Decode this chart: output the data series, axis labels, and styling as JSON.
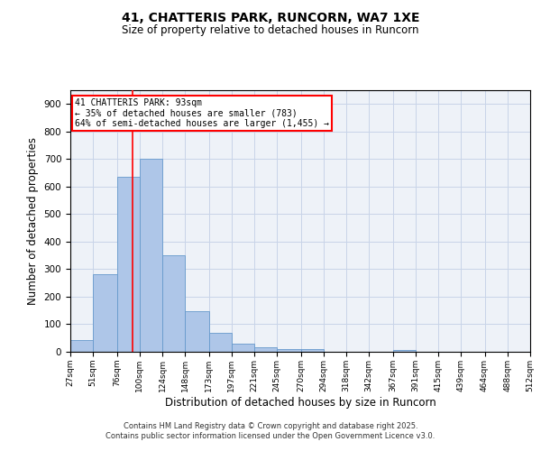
{
  "title": "41, CHATTERIS PARK, RUNCORN, WA7 1XE",
  "subtitle": "Size of property relative to detached houses in Runcorn",
  "xlabel": "Distribution of detached houses by size in Runcorn",
  "ylabel": "Number of detached properties",
  "footer_line1": "Contains HM Land Registry data © Crown copyright and database right 2025.",
  "footer_line2": "Contains public sector information licensed under the Open Government Licence v3.0.",
  "bins": [
    27,
    51,
    76,
    100,
    124,
    148,
    173,
    197,
    221,
    245,
    270,
    294,
    318,
    342,
    367,
    391,
    415,
    439,
    464,
    488,
    512
  ],
  "values": [
    42,
    283,
    635,
    700,
    350,
    147,
    68,
    30,
    16,
    11,
    9,
    0,
    0,
    0,
    7,
    0,
    0,
    0,
    0,
    0
  ],
  "bar_color": "#aec6e8",
  "bar_edge_color": "#6699cc",
  "vline_x": 93,
  "vline_color": "red",
  "ylim": [
    0,
    950
  ],
  "yticks": [
    0,
    100,
    200,
    300,
    400,
    500,
    600,
    700,
    800,
    900
  ],
  "annotation_line1": "41 CHATTERIS PARK: 93sqm",
  "annotation_line2": "← 35% of detached houses are smaller (783)",
  "annotation_line3": "64% of semi-detached houses are larger (1,455) →",
  "grid_color": "#c8d4e8",
  "background_color": "#eef2f8",
  "tick_labels": [
    "27sqm",
    "51sqm",
    "76sqm",
    "100sqm",
    "124sqm",
    "148sqm",
    "173sqm",
    "197sqm",
    "221sqm",
    "245sqm",
    "270sqm",
    "294sqm",
    "318sqm",
    "342sqm",
    "367sqm",
    "391sqm",
    "415sqm",
    "439sqm",
    "464sqm",
    "488sqm",
    "512sqm"
  ]
}
